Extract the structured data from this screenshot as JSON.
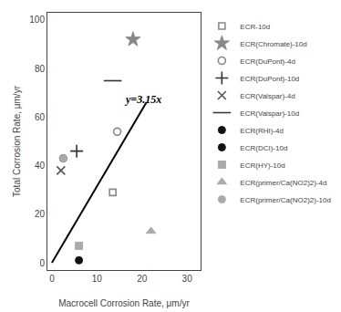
{
  "chart_data": {
    "type": "scatter",
    "xlabel": "Macrocell Corrosion Rate, μm/yr",
    "ylabel": "Total Corrosion Rate, μm/yr",
    "xlim": [
      -1,
      33
    ],
    "ylim": [
      -3,
      103
    ],
    "xticks": [
      0,
      10,
      20,
      30
    ],
    "yticks": [
      0,
      20,
      40,
      60,
      80,
      100
    ],
    "grid": false,
    "legend": "right",
    "annotations": [
      {
        "text": "y=3.15x",
        "x": 15.5,
        "y": 64
      }
    ],
    "series": [
      {
        "type": "line",
        "color": "#000000",
        "line_style": "solid",
        "x": [
          0,
          21
        ],
        "values": [
          0,
          66.15
        ]
      },
      {
        "name": "ECR-10d",
        "marker": "square-open",
        "color": "#888888",
        "x": [
          13.5
        ],
        "values": [
          29
        ]
      },
      {
        "name": "ECR(Chromate)-10d",
        "marker": "star",
        "color": "#888888",
        "x": [
          18.0
        ],
        "values": [
          92
        ]
      },
      {
        "name": "ECR(DuPont)-4d",
        "marker": "circle-open",
        "color": "#888888",
        "x": [
          14.5
        ],
        "values": [
          54
        ]
      },
      {
        "name": "ECR(DuPont)-10d",
        "marker": "cross-thin-open",
        "color": "#333333",
        "x": [
          5.5
        ],
        "values": [
          46
        ]
      },
      {
        "name": "ECR(Valspar)-4d",
        "marker": "x-thin-open",
        "color": "#555555",
        "x": [
          2.0
        ],
        "values": [
          38
        ]
      },
      {
        "name": "ECR(Valspar)-10d",
        "marker": "line-ew-open",
        "color": "#333333",
        "x": [
          13.5
        ],
        "values": [
          75
        ]
      },
      {
        "name": "ECR(RHI)-4d",
        "marker": "circle",
        "color": "#111111",
        "x": [
          2.5
        ],
        "values": [
          43
        ]
      },
      {
        "name": "ECR(DCI)-10d",
        "marker": "circle",
        "color": "#111111",
        "x": [
          6.0
        ],
        "values": [
          1
        ]
      },
      {
        "name": "ECR(HY)-10d",
        "marker": "square",
        "color": "#aaaaaa",
        "x": [
          6.0
        ],
        "values": [
          7
        ]
      },
      {
        "name": "ECR(primer/Ca(NO2)2)-4d",
        "marker": "triangle-up",
        "color": "#aaaaaa",
        "x": [
          22.0
        ],
        "values": [
          13
        ]
      },
      {
        "name": "ECR(primer/Ca(NO2)2)-10d",
        "marker": "circle",
        "color": "#aaaaaa",
        "x": [
          2.5
        ],
        "values": [
          43
        ]
      }
    ]
  }
}
